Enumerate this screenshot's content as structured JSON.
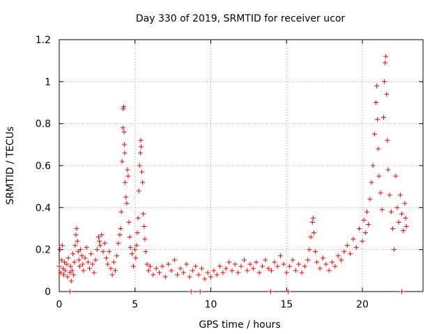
{
  "chart_data": {
    "type": "scatter",
    "title": "Day 330 of 2019, SRMTID for receiver ucor",
    "xlabel": "GPS time / hours",
    "ylabel": "SRMTID / TECUs",
    "xlim": [
      0,
      24
    ],
    "ylim": [
      0,
      1.2
    ],
    "xticks": [
      0,
      5,
      10,
      15,
      20
    ],
    "xtick_labels": [
      "0",
      "5",
      "10",
      "15",
      "20"
    ],
    "yticks": [
      0,
      0.2,
      0.4,
      0.6,
      0.8,
      1,
      1.2
    ],
    "ytick_labels": [
      "0",
      "0.2",
      "0.4",
      "0.6",
      "0.8",
      "1",
      "1.2"
    ],
    "grid": true,
    "marker": "+",
    "color": "#ff0000",
    "series": [
      {
        "name": "SRMTID",
        "points": [
          [
            0.0,
            0.12
          ],
          [
            0.05,
            0.2
          ],
          [
            0.1,
            0.09
          ],
          [
            0.15,
            0.15
          ],
          [
            0.2,
            0.22
          ],
          [
            0.25,
            0.11
          ],
          [
            0.3,
            0.08
          ],
          [
            0.35,
            0.14
          ],
          [
            0.4,
            0.1
          ],
          [
            0.5,
            0.13
          ],
          [
            0.55,
            0.07
          ],
          [
            0.6,
            0.16
          ],
          [
            0.7,
            0.09
          ],
          [
            0.75,
            0.12
          ],
          [
            0.8,
            0.05
          ],
          [
            0.85,
            0.1
          ],
          [
            0.9,
            0.18
          ],
          [
            0.95,
            0.08
          ],
          [
            1.0,
            0.14
          ],
          [
            1.05,
            0.22
          ],
          [
            1.1,
            0.27
          ],
          [
            1.15,
            0.3
          ],
          [
            1.2,
            0.24
          ],
          [
            1.25,
            0.19
          ],
          [
            1.3,
            0.15
          ],
          [
            1.35,
            0.12
          ],
          [
            1.4,
            0.2
          ],
          [
            1.5,
            0.17
          ],
          [
            1.55,
            0.13
          ],
          [
            1.6,
            0.1
          ],
          [
            1.7,
            0.16
          ],
          [
            1.8,
            0.21
          ],
          [
            1.9,
            0.14
          ],
          [
            2.0,
            0.11
          ],
          [
            2.1,
            0.18
          ],
          [
            2.2,
            0.13
          ],
          [
            2.3,
            0.09
          ],
          [
            2.4,
            0.15
          ],
          [
            2.5,
            0.2
          ],
          [
            2.6,
            0.26
          ],
          [
            2.65,
            0.24
          ],
          [
            2.7,
            0.22
          ],
          [
            2.8,
            0.27
          ],
          [
            2.9,
            0.19
          ],
          [
            3.0,
            0.23
          ],
          [
            3.1,
            0.16
          ],
          [
            3.2,
            0.13
          ],
          [
            3.3,
            0.19
          ],
          [
            3.4,
            0.11
          ],
          [
            3.5,
            0.08
          ],
          [
            3.6,
            0.14
          ],
          [
            3.7,
            0.1
          ],
          [
            3.8,
            0.17
          ],
          [
            3.9,
            0.23
          ],
          [
            4.0,
            0.27
          ],
          [
            4.05,
            0.3
          ],
          [
            4.1,
            0.38
          ],
          [
            4.15,
            0.62
          ],
          [
            4.2,
            0.78
          ],
          [
            4.22,
            0.87
          ],
          [
            4.25,
            0.88
          ],
          [
            4.28,
            0.76
          ],
          [
            4.3,
            0.7
          ],
          [
            4.32,
            0.66
          ],
          [
            4.35,
            0.52
          ],
          [
            4.4,
            0.45
          ],
          [
            4.45,
            0.42
          ],
          [
            4.5,
            0.58
          ],
          [
            4.55,
            0.55
          ],
          [
            4.6,
            0.33
          ],
          [
            4.65,
            0.26
          ],
          [
            4.7,
            0.21
          ],
          [
            4.8,
            0.18
          ],
          [
            4.9,
            0.12
          ],
          [
            5.0,
            0.2
          ],
          [
            5.05,
            0.16
          ],
          [
            5.1,
            0.22
          ],
          [
            5.15,
            0.28
          ],
          [
            5.2,
            0.35
          ],
          [
            5.25,
            0.48
          ],
          [
            5.3,
            0.6
          ],
          [
            5.35,
            0.66
          ],
          [
            5.38,
            0.72
          ],
          [
            5.4,
            0.69
          ],
          [
            5.45,
            0.57
          ],
          [
            5.5,
            0.52
          ],
          [
            5.55,
            0.37
          ],
          [
            5.6,
            0.31
          ],
          [
            5.65,
            0.25
          ],
          [
            5.7,
            0.19
          ],
          [
            5.8,
            0.13
          ],
          [
            5.9,
            0.1
          ],
          [
            6.0,
            0.12
          ],
          [
            6.2,
            0.08
          ],
          [
            6.4,
            0.11
          ],
          [
            6.6,
            0.09
          ],
          [
            6.8,
            0.12
          ],
          [
            7.0,
            0.07
          ],
          [
            7.2,
            0.13
          ],
          [
            7.4,
            0.1
          ],
          [
            7.6,
            0.15
          ],
          [
            7.8,
            0.08
          ],
          [
            8.0,
            0.11
          ],
          [
            8.2,
            0.09
          ],
          [
            8.4,
            0.13
          ],
          [
            8.6,
            0.07
          ],
          [
            8.8,
            0.1
          ],
          [
            9.0,
            0.12
          ],
          [
            9.2,
            0.08
          ],
          [
            9.4,
            0.11
          ],
          [
            9.6,
            0.06
          ],
          [
            9.8,
            0.09
          ],
          [
            10.0,
            0.07
          ],
          [
            10.2,
            0.1
          ],
          [
            10.4,
            0.08
          ],
          [
            10.6,
            0.12
          ],
          [
            10.8,
            0.09
          ],
          [
            11.0,
            0.11
          ],
          [
            11.2,
            0.14
          ],
          [
            11.4,
            0.1
          ],
          [
            11.6,
            0.13
          ],
          [
            11.8,
            0.09
          ],
          [
            12.0,
            0.12
          ],
          [
            12.2,
            0.15
          ],
          [
            12.4,
            0.1
          ],
          [
            12.6,
            0.13
          ],
          [
            12.8,
            0.11
          ],
          [
            13.0,
            0.14
          ],
          [
            13.2,
            0.09
          ],
          [
            13.4,
            0.12
          ],
          [
            13.6,
            0.15
          ],
          [
            13.8,
            0.11
          ],
          [
            14.0,
            0.1
          ],
          [
            14.2,
            0.14
          ],
          [
            14.4,
            0.12
          ],
          [
            14.6,
            0.17
          ],
          [
            14.8,
            0.13
          ],
          [
            15.0,
            0.09
          ],
          [
            15.2,
            0.12
          ],
          [
            15.4,
            0.15
          ],
          [
            15.6,
            0.1
          ],
          [
            15.8,
            0.13
          ],
          [
            16.0,
            0.09
          ],
          [
            16.2,
            0.12
          ],
          [
            16.4,
            0.15
          ],
          [
            16.5,
            0.2
          ],
          [
            16.6,
            0.26
          ],
          [
            16.7,
            0.33
          ],
          [
            16.75,
            0.35
          ],
          [
            16.8,
            0.28
          ],
          [
            16.9,
            0.19
          ],
          [
            17.0,
            0.14
          ],
          [
            17.2,
            0.11
          ],
          [
            17.4,
            0.16
          ],
          [
            17.6,
            0.13
          ],
          [
            17.8,
            0.1
          ],
          [
            18.0,
            0.14
          ],
          [
            18.2,
            0.12
          ],
          [
            18.4,
            0.17
          ],
          [
            18.6,
            0.15
          ],
          [
            18.8,
            0.19
          ],
          [
            19.0,
            0.22
          ],
          [
            19.2,
            0.18
          ],
          [
            19.4,
            0.25
          ],
          [
            19.6,
            0.21
          ],
          [
            19.8,
            0.3
          ],
          [
            20.0,
            0.24
          ],
          [
            20.1,
            0.34
          ],
          [
            20.2,
            0.28
          ],
          [
            20.3,
            0.38
          ],
          [
            20.4,
            0.32
          ],
          [
            20.5,
            0.44
          ],
          [
            20.6,
            0.52
          ],
          [
            20.7,
            0.6
          ],
          [
            20.8,
            0.75
          ],
          [
            20.9,
            0.9
          ],
          [
            20.95,
            0.98
          ],
          [
            21.0,
            0.82
          ],
          [
            21.05,
            0.68
          ],
          [
            21.1,
            0.55
          ],
          [
            21.2,
            0.47
          ],
          [
            21.3,
            0.39
          ],
          [
            21.4,
            0.83
          ],
          [
            21.45,
            1.0
          ],
          [
            21.5,
            1.09
          ],
          [
            21.55,
            1.12
          ],
          [
            21.6,
            0.94
          ],
          [
            21.65,
            0.72
          ],
          [
            21.7,
            0.58
          ],
          [
            21.8,
            0.46
          ],
          [
            21.9,
            0.38
          ],
          [
            22.0,
            0.3
          ],
          [
            22.1,
            0.2
          ],
          [
            22.2,
            0.55
          ],
          [
            22.3,
            0.4
          ],
          [
            22.4,
            0.33
          ],
          [
            22.5,
            0.46
          ],
          [
            22.6,
            0.37
          ],
          [
            22.7,
            0.29
          ],
          [
            22.8,
            0.42
          ],
          [
            22.85,
            0.35
          ],
          [
            22.9,
            0.31
          ],
          [
            13.95,
            0.0
          ],
          [
            15.1,
            0.0
          ],
          [
            0.7,
            0.0
          ],
          [
            8.7,
            0.0
          ],
          [
            22.6,
            0.0
          ],
          [
            9.3,
            0.0
          ]
        ]
      }
    ]
  }
}
